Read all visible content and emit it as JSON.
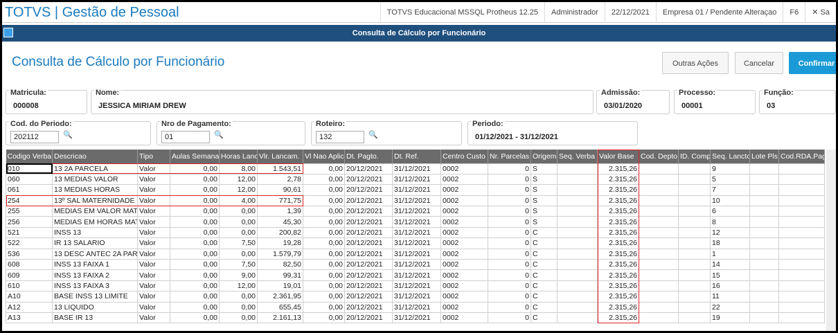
{
  "topbar": {
    "title": "TOTVS | Gestão de Pessoal",
    "info": [
      "TOTVS Educacional MSSQL Protheus 12.25",
      "Administrador",
      "22/12/2021",
      "Empresa 01 / Pendente Alteraçao",
      "F6"
    ],
    "close": "✕ Sa"
  },
  "window_title": "Consulta de Cálculo por Funcionário",
  "header": {
    "title": "Consulta de Cálculo por Funcionário",
    "buttons": [
      "Outras Ações",
      "Cancelar",
      "Confirmar"
    ]
  },
  "fields": [
    {
      "label": "Matricula:",
      "value": "000008"
    },
    {
      "label": "Nome:",
      "value": "JESSICA MIRIAM DREW"
    },
    {
      "label": "Admissão:",
      "value": "03/01/2020"
    },
    {
      "label": "Processo:",
      "value": "00001"
    },
    {
      "label": "Função:",
      "value": "03"
    },
    {
      "label": "Cod. do Periodo:",
      "value": "202112"
    },
    {
      "label": "Nro de Pagamento:",
      "value": "01"
    },
    {
      "label": "Roteiro:",
      "value": "132"
    },
    {
      "label": "Periodo:",
      "value": "01/12/2021 - 31/12/2021"
    }
  ],
  "table": {
    "columns": [
      "Codigo Verba",
      "Descricao",
      "Tipo",
      "Aulas Semana",
      "Horas Lanc.",
      "Vlr. Lancam.",
      "Vl Nao Aplic",
      "Dt. Pagto.",
      "Dt. Ref.",
      "Centro Custo",
      "Nr. Parcelas",
      "Origem",
      "Seq. Verba",
      "Valor Base",
      "Cod. Depto.",
      "ID. Comp.",
      "Seq. Lancto.",
      "Lote Pls",
      "Cod.RDA.Pag."
    ],
    "rows": [
      [
        "010",
        "13 2A PARCELA",
        "Valor",
        "0,00",
        "8,00",
        "1.543,51",
        "0,00",
        "20/12/2021",
        "31/12/2021",
        "0002",
        "0",
        "S",
        null,
        "2.315,26",
        null,
        null,
        "9",
        null,
        null
      ],
      [
        "060",
        "13 MEDIAS VALOR",
        "Valor",
        "0,00",
        "12,00",
        "2,78",
        "0,00",
        "20/12/2021",
        "31/12/2021",
        "0002",
        "0",
        "S",
        null,
        "2.315,26",
        null,
        null,
        "5",
        null,
        null
      ],
      [
        "061",
        "13 MEDIAS HORAS",
        "Valor",
        "0,00",
        "12,00",
        "90,61",
        "0,00",
        "20/12/2021",
        "31/12/2021",
        "0002",
        "0",
        "S",
        null,
        "2.315,26",
        null,
        null,
        "7",
        null,
        null
      ],
      [
        "254",
        "13º SAL MATERNIDADE",
        "Valor",
        "0,00",
        "4,00",
        "771,75",
        "0,00",
        "20/12/2021",
        "31/12/2021",
        "0002",
        "0",
        "S",
        null,
        "2.315,26",
        null,
        null,
        "10",
        null,
        null
      ],
      [
        "255",
        "MEDIAS EM VALOR MATE",
        "Valor",
        "0,00",
        "0,00",
        "1,39",
        "0,00",
        "20/12/2021",
        "31/12/2021",
        "0002",
        "0",
        "S",
        null,
        "2.315,26",
        null,
        null,
        "6",
        null,
        null
      ],
      [
        "256",
        "MEDIAS EM HORAS MATE",
        "Valor",
        "0,00",
        "0,00",
        "45,30",
        "0,00",
        "20/12/2021",
        "31/12/2021",
        "0002",
        "0",
        "S",
        null,
        "2.315,26",
        null,
        null,
        "8",
        null,
        null
      ],
      [
        "521",
        "INSS 13",
        "Valor",
        "0,00",
        "0,00",
        "200,82",
        "0,00",
        "20/12/2021",
        "31/12/2021",
        "0002",
        "0",
        "C",
        null,
        "2.315,26",
        null,
        null,
        "12",
        null,
        null
      ],
      [
        "522",
        "IR 13 SALARIO",
        "Valor",
        "0,00",
        "7,50",
        "19,28",
        "0,00",
        "20/12/2021",
        "31/12/2021",
        "0002",
        "0",
        "C",
        null,
        "2.315,26",
        null,
        null,
        "18",
        null,
        null
      ],
      [
        "536",
        "13 DESC ANTEC 2A PAR",
        "Valor",
        "0,00",
        "0,00",
        "1.579,79",
        "0,00",
        "20/12/2021",
        "31/12/2021",
        "0002",
        "0",
        "C",
        null,
        "2.315,26",
        null,
        null,
        "1",
        null,
        null
      ],
      [
        "608",
        "INSS 13 FAIXA 1",
        "Valor",
        "0,00",
        "7,50",
        "82,50",
        "0,00",
        "20/12/2021",
        "31/12/2021",
        "0002",
        "0",
        "C",
        null,
        "2.315,26",
        null,
        null,
        "14",
        null,
        null
      ],
      [
        "609",
        "INSS 13 FAIXA 2",
        "Valor",
        "0,00",
        "9,00",
        "99,31",
        "0,00",
        "20/12/2021",
        "31/12/2021",
        "0002",
        "0",
        "C",
        null,
        "2.315,26",
        null,
        null,
        "15",
        null,
        null
      ],
      [
        "610",
        "INSS 13 FAIXA 3",
        "Valor",
        "0,00",
        "12,00",
        "19,01",
        "0,00",
        "20/12/2021",
        "31/12/2021",
        "0002",
        "0",
        "C",
        null,
        "2.315,26",
        null,
        null,
        "16",
        null,
        null
      ],
      [
        "A10",
        "BASE INSS 13 LIMITE",
        "Valor",
        "0,00",
        "0,00",
        "2.361,95",
        "0,00",
        "20/12/2021",
        "31/12/2021",
        "0002",
        "0",
        "C",
        null,
        "2.315,26",
        null,
        null,
        "11",
        null,
        null
      ],
      [
        "A12",
        "13 LIQUIDO",
        "Valor",
        "0,00",
        "0,00",
        "655,45",
        "0,00",
        "20/12/2021",
        "31/12/2021",
        "0002",
        "0",
        "C",
        null,
        "2.315,26",
        null,
        null,
        "22",
        null,
        null
      ],
      [
        "A13",
        "BASE IR 13",
        "Valor",
        "0,00",
        "0,00",
        "2.161,13",
        "0,00",
        "20/12/2021",
        "31/12/2021",
        "0002",
        "0",
        "C",
        null,
        "2.315,26",
        null,
        null,
        "19",
        null,
        null
      ]
    ]
  }
}
